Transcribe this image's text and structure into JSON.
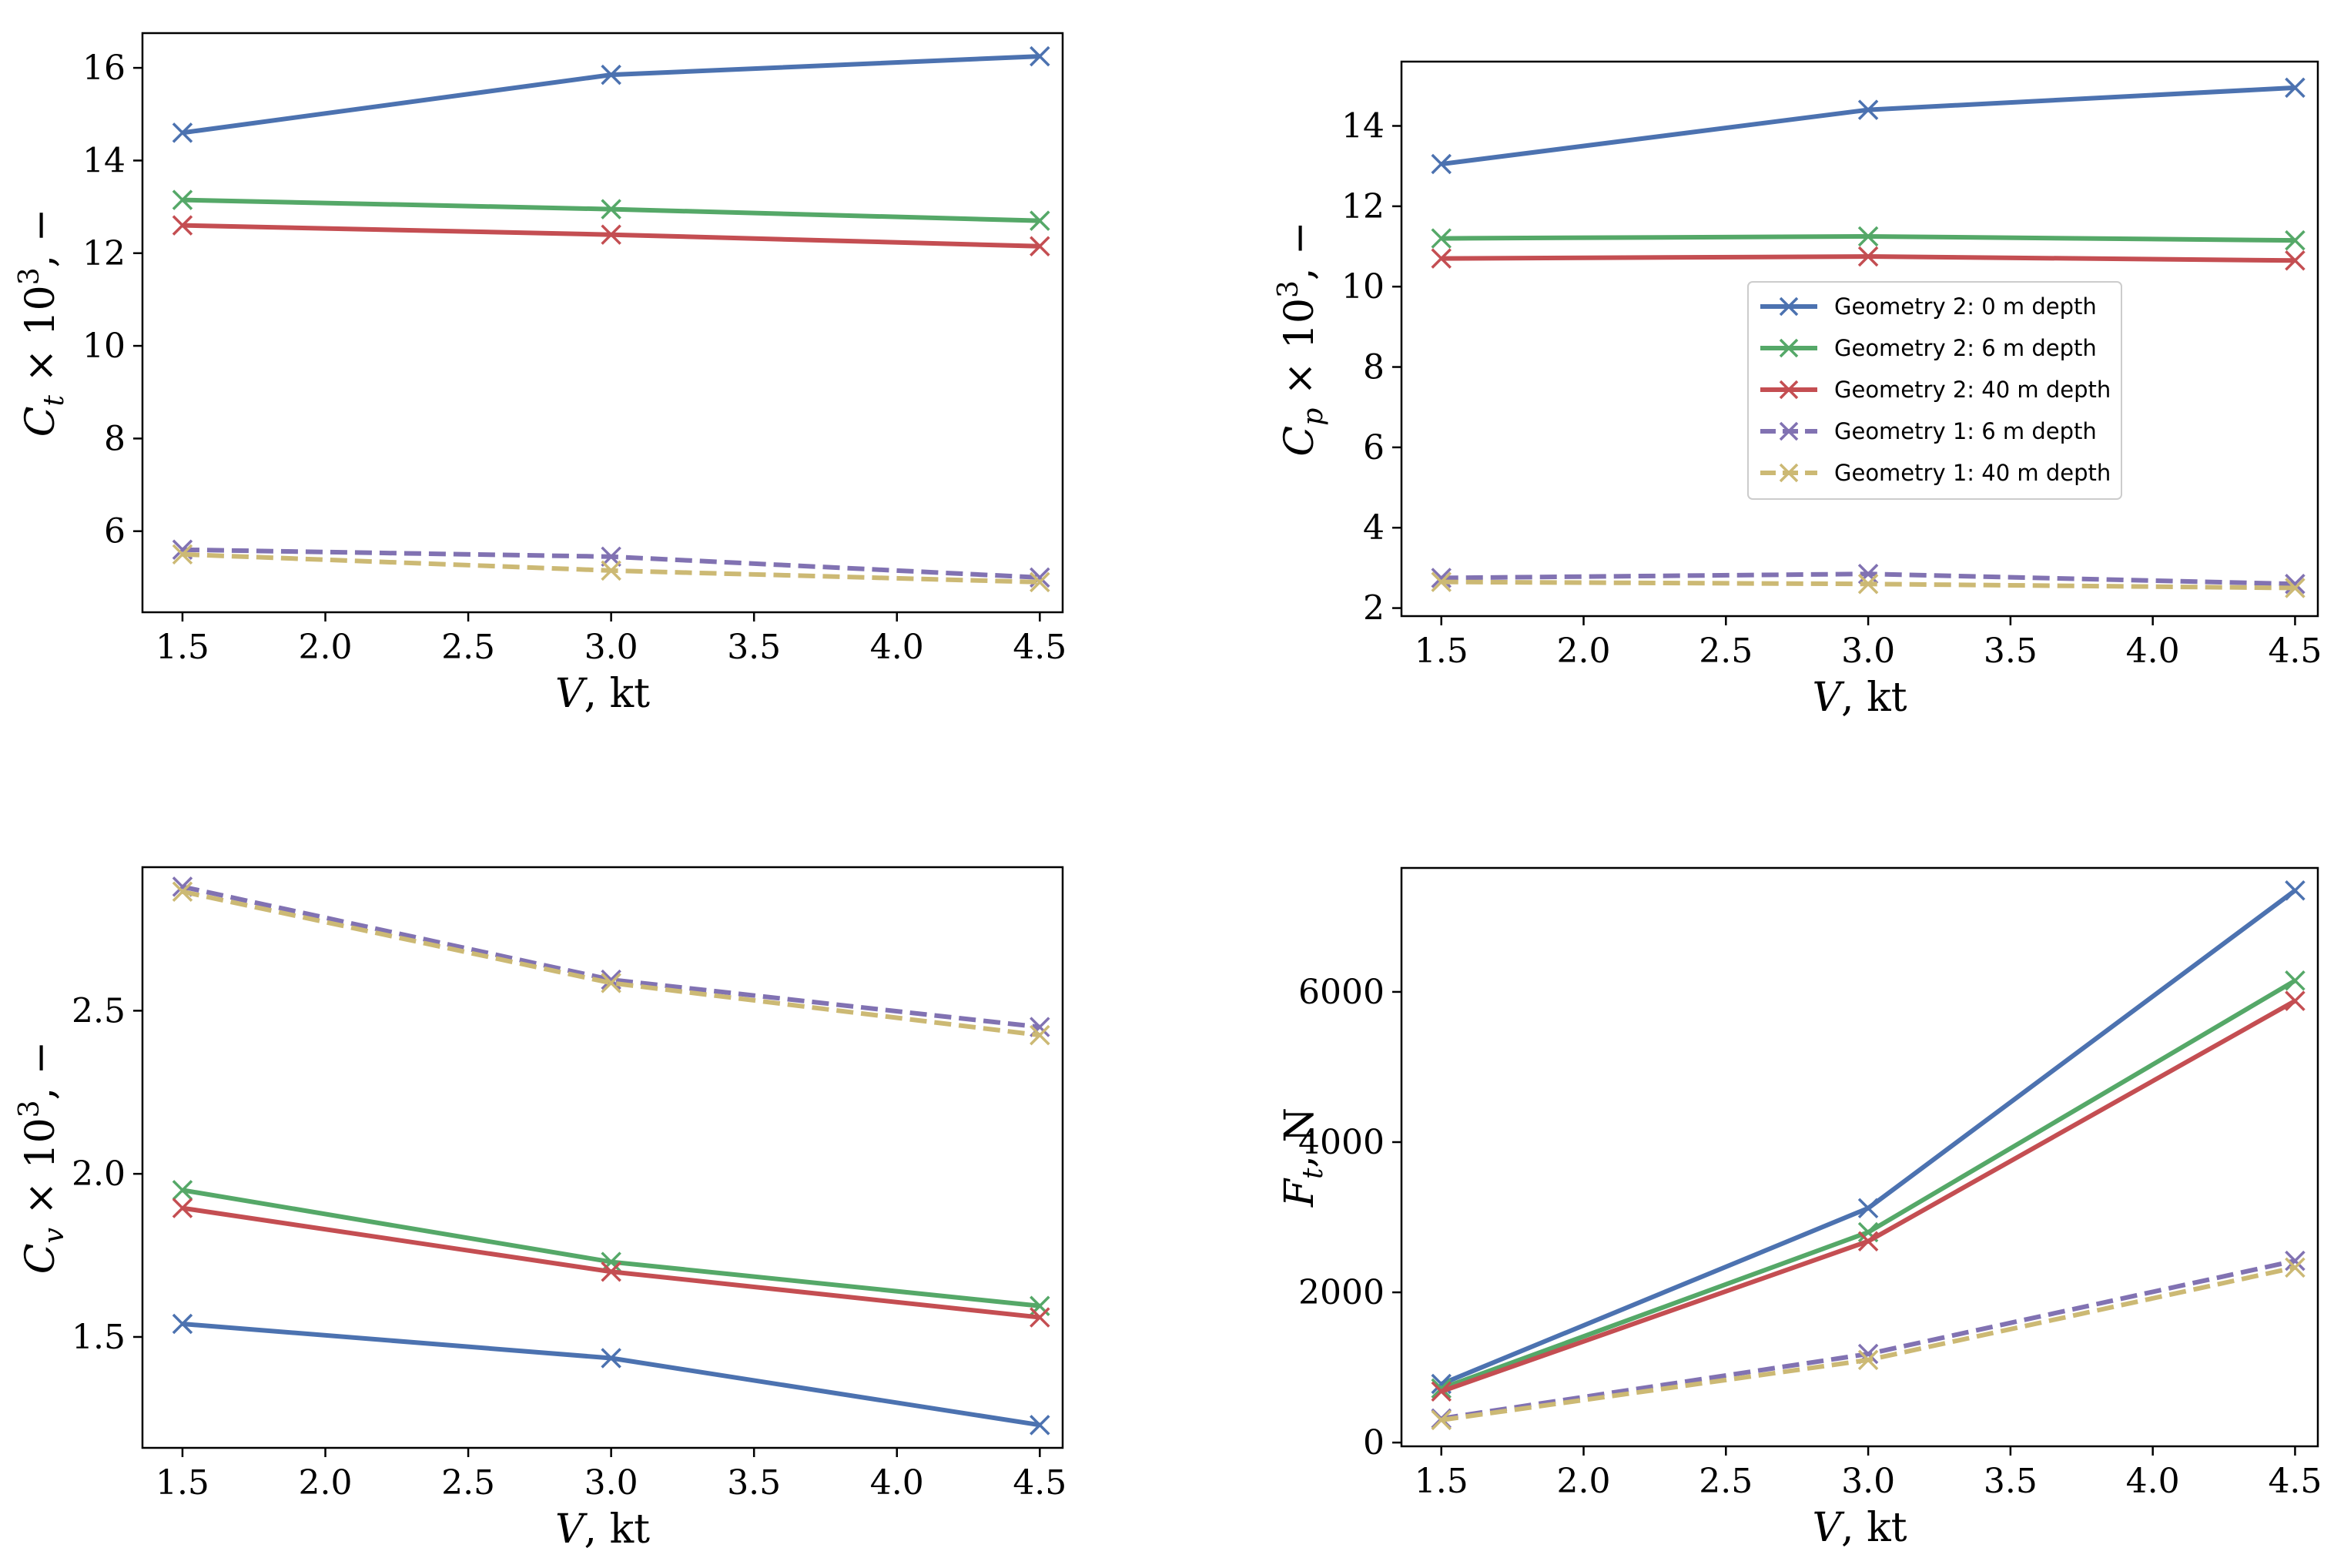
{
  "legend": {
    "entries": [
      {
        "label": "Geometry 2: 0 m depth",
        "color": "#4c72b0",
        "dash": false
      },
      {
        "label": "Geometry 2: 6 m depth",
        "color": "#55a868",
        "dash": false
      },
      {
        "label": "Geometry 2: 40 m depth",
        "color": "#c44e52",
        "dash": false
      },
      {
        "label": "Geometry 1: 6 m depth",
        "color": "#8172b2",
        "dash": true
      },
      {
        "label": "Geometry 1: 40 m depth",
        "color": "#ccb974",
        "dash": true
      }
    ]
  },
  "chart_data": [
    {
      "type": "line",
      "id": "ct",
      "title": "",
      "xlabel": "V, kt",
      "ylabel": "C_t × 10^3, −",
      "x": [
        1.5,
        3.0,
        4.5
      ],
      "xlim": [
        1.36,
        4.58
      ],
      "ylim": [
        4.25,
        16.75
      ],
      "xticks": [
        "1.5",
        "2.0",
        "2.5",
        "3.0",
        "3.5",
        "4.0",
        "4.5"
      ],
      "yticks": [
        "6",
        "8",
        "10",
        "12",
        "14",
        "16"
      ],
      "series": [
        {
          "name": "Geometry 2: 0 m depth",
          "values": [
            14.6,
            15.85,
            16.25
          ]
        },
        {
          "name": "Geometry 2: 6 m depth",
          "values": [
            13.15,
            12.95,
            12.7
          ]
        },
        {
          "name": "Geometry 2: 40 m depth",
          "values": [
            12.6,
            12.4,
            12.15
          ]
        },
        {
          "name": "Geometry 1: 6 m depth",
          "values": [
            5.6,
            5.45,
            5.0
          ]
        },
        {
          "name": "Geometry 1: 40 m depth",
          "values": [
            5.5,
            5.15,
            4.9
          ]
        }
      ]
    },
    {
      "type": "line",
      "id": "cp",
      "title": "",
      "xlabel": "V, kt",
      "ylabel": "C_p × 10^3, −",
      "x": [
        1.5,
        3.0,
        4.5
      ],
      "xlim": [
        1.36,
        4.58
      ],
      "ylim": [
        1.8,
        15.6
      ],
      "xticks": [
        "1.5",
        "2.0",
        "2.5",
        "3.0",
        "3.5",
        "4.0",
        "4.5"
      ],
      "yticks": [
        "2",
        "4",
        "6",
        "8",
        "10",
        "12",
        "14"
      ],
      "legend_position": "center-right",
      "series": [
        {
          "name": "Geometry 2: 0 m depth",
          "values": [
            13.05,
            14.4,
            14.95
          ]
        },
        {
          "name": "Geometry 2: 6 m depth",
          "values": [
            11.2,
            11.25,
            11.15
          ]
        },
        {
          "name": "Geometry 2: 40 m depth",
          "values": [
            10.7,
            10.75,
            10.65
          ]
        },
        {
          "name": "Geometry 1: 6 m depth",
          "values": [
            2.75,
            2.85,
            2.6
          ]
        },
        {
          "name": "Geometry 1: 40 m depth",
          "values": [
            2.65,
            2.6,
            2.5
          ]
        }
      ]
    },
    {
      "type": "line",
      "id": "cv",
      "title": "",
      "xlabel": "V, kt",
      "ylabel": "C_v × 10^3, −",
      "x": [
        1.5,
        3.0,
        4.5
      ],
      "xlim": [
        1.36,
        4.58
      ],
      "ylim": [
        1.16,
        2.94
      ],
      "xticks": [
        "1.5",
        "2.0",
        "2.5",
        "3.0",
        "3.5",
        "4.0",
        "4.5"
      ],
      "yticks": [
        "1.5",
        "2.0",
        "2.5"
      ],
      "series": [
        {
          "name": "Geometry 2: 0 m depth",
          "values": [
            1.54,
            1.435,
            1.23
          ]
        },
        {
          "name": "Geometry 2: 6 m depth",
          "values": [
            1.95,
            1.73,
            1.595
          ]
        },
        {
          "name": "Geometry 2: 40 m depth",
          "values": [
            1.895,
            1.7,
            1.56
          ]
        },
        {
          "name": "Geometry 1: 6 m depth",
          "values": [
            2.88,
            2.595,
            2.45
          ]
        },
        {
          "name": "Geometry 1: 40 m depth",
          "values": [
            2.865,
            2.585,
            2.425
          ]
        }
      ]
    },
    {
      "type": "line",
      "id": "ft",
      "title": "",
      "xlabel": "V, kt",
      "ylabel": "F_t, N",
      "x": [
        1.5,
        3.0,
        4.5
      ],
      "xlim": [
        1.36,
        4.58
      ],
      "ylim": [
        -50,
        7650
      ],
      "xticks": [
        "1.5",
        "2.0",
        "2.5",
        "3.0",
        "3.5",
        "4.0",
        "4.5"
      ],
      "yticks": [
        "0",
        "2000",
        "4000",
        "6000"
      ],
      "series": [
        {
          "name": "Geometry 2: 0 m depth",
          "values": [
            780,
            3120,
            7350
          ]
        },
        {
          "name": "Geometry 2: 6 m depth",
          "values": [
            720,
            2800,
            6150
          ]
        },
        {
          "name": "Geometry 2: 40 m depth",
          "values": [
            680,
            2680,
            5880
          ]
        },
        {
          "name": "Geometry 1: 6 m depth",
          "values": [
            320,
            1180,
            2420
          ]
        },
        {
          "name": "Geometry 1: 40 m depth",
          "values": [
            300,
            1100,
            2330
          ]
        }
      ]
    }
  ]
}
